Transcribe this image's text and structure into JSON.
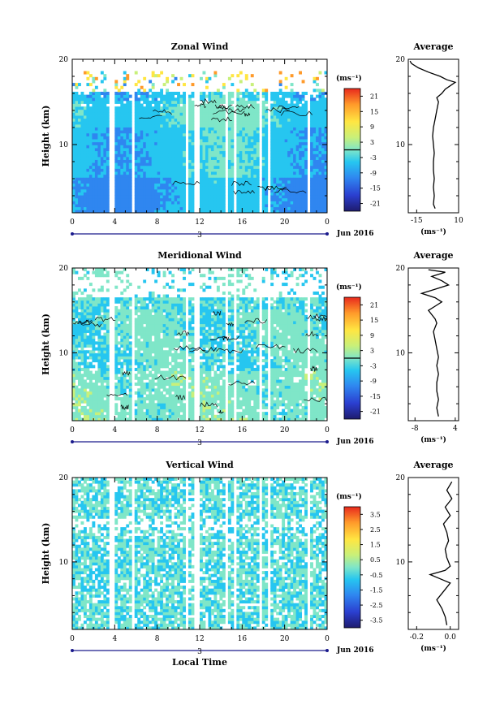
{
  "chart_data": [
    {
      "type": "heatmap",
      "title": "Zonal Wind",
      "ylabel": "Height (km)",
      "y_ticks": [
        "10",
        "20"
      ],
      "ylim": [
        2,
        20
      ],
      "xlim": [
        0,
        24
      ],
      "x_ticks": [
        "0",
        "4",
        "8",
        "12",
        "16",
        "20",
        "0"
      ],
      "date_day": "3",
      "date_label": "Jun 2016",
      "colorbar": {
        "unit": "(ms⁻¹)",
        "labels": [
          "21",
          "15",
          "9",
          "3",
          "-3",
          "-9",
          "-15",
          "-21"
        ],
        "range": [
          -24,
          24
        ]
      },
      "average_profile": {
        "title": "Average",
        "xlabel": "(ms⁻¹)",
        "x_ticks": [
          "-15",
          "10"
        ],
        "xlim": [
          -20,
          10
        ],
        "y_ticks": [
          "10",
          "20"
        ],
        "points": [
          [
            -4,
            2.5
          ],
          [
            -5,
            3
          ],
          [
            -4.5,
            4
          ],
          [
            -5,
            5
          ],
          [
            -4.5,
            6
          ],
          [
            -5,
            7
          ],
          [
            -5,
            8
          ],
          [
            -4.5,
            9
          ],
          [
            -5,
            10
          ],
          [
            -5.5,
            11
          ],
          [
            -5,
            12
          ],
          [
            -4,
            13
          ],
          [
            -3,
            14
          ],
          [
            -2,
            15
          ],
          [
            -3,
            15.5
          ],
          [
            0,
            16
          ],
          [
            2,
            16.5
          ],
          [
            8,
            17.3
          ],
          [
            3,
            17.6
          ],
          [
            -1,
            18
          ],
          [
            -8,
            18.5
          ],
          [
            -14,
            19
          ],
          [
            -18,
            19.5
          ],
          [
            -19,
            19.8
          ]
        ]
      }
    },
    {
      "type": "heatmap",
      "title": "Meridional Wind",
      "ylabel": "Height (km)",
      "y_ticks": [
        "10",
        "20"
      ],
      "ylim": [
        2,
        20
      ],
      "xlim": [
        0,
        24
      ],
      "x_ticks": [
        "0",
        "4",
        "8",
        "12",
        "16",
        "20",
        "0"
      ],
      "date_day": "3",
      "date_label": "Jun 2016",
      "colorbar": {
        "unit": "(ms⁻¹)",
        "labels": [
          "21",
          "15",
          "9",
          "3",
          "-3",
          "-9",
          "-15",
          "-21"
        ],
        "range": [
          -24,
          24
        ]
      },
      "average_profile": {
        "title": "Average",
        "xlabel": "(ms⁻¹)",
        "x_ticks": [
          "-8",
          "4"
        ],
        "xlim": [
          -10,
          5
        ],
        "y_ticks": [
          "10",
          "20"
        ],
        "points": [
          [
            -1,
            2.5
          ],
          [
            -1.5,
            3.5
          ],
          [
            -1,
            4.5
          ],
          [
            -1.5,
            5.5
          ],
          [
            -1.5,
            6.5
          ],
          [
            -1,
            7.5
          ],
          [
            -1.5,
            8.5
          ],
          [
            -1,
            9.5
          ],
          [
            -1.5,
            10.5
          ],
          [
            -2,
            11.5
          ],
          [
            -2.5,
            12.5
          ],
          [
            -1.5,
            13.5
          ],
          [
            -2,
            14
          ],
          [
            -3,
            14.5
          ],
          [
            -4,
            15
          ],
          [
            -2,
            15.5
          ],
          [
            0,
            16
          ],
          [
            -2,
            16.5
          ],
          [
            -6,
            17
          ],
          [
            -2,
            17.5
          ],
          [
            2,
            18
          ],
          [
            0,
            18.5
          ],
          [
            -3,
            19
          ],
          [
            1,
            19.5
          ],
          [
            -4,
            19.8
          ]
        ]
      }
    },
    {
      "type": "heatmap",
      "title": "Vertical Wind",
      "ylabel": "Height (km)",
      "xlabel": "Local Time",
      "y_ticks": [
        "10",
        "20"
      ],
      "ylim": [
        2,
        20
      ],
      "xlim": [
        0,
        24
      ],
      "x_ticks": [
        "0",
        "4",
        "8",
        "12",
        "16",
        "20",
        "0"
      ],
      "date_day": "3",
      "date_label": "Jun 2016",
      "colorbar": {
        "unit": "(ms⁻¹)",
        "labels": [
          "3.5",
          "2.5",
          "1.5",
          "0.5",
          "-0.5",
          "-1.5",
          "-2.5",
          "-3.5"
        ],
        "range": [
          -4,
          4
        ]
      },
      "average_profile": {
        "title": "Average",
        "xlabel": "(ms⁻¹)",
        "x_ticks": [
          "-0.2",
          "0.0"
        ],
        "xlim": [
          -0.25,
          0.05
        ],
        "y_ticks": [
          "10",
          "20"
        ],
        "points": [
          [
            -0.02,
            2.5
          ],
          [
            -0.03,
            3.5
          ],
          [
            -0.05,
            4.5
          ],
          [
            -0.08,
            5.5
          ],
          [
            -0.04,
            6.5
          ],
          [
            0.0,
            7.5
          ],
          [
            -0.06,
            8.0
          ],
          [
            -0.12,
            8.5
          ],
          [
            -0.03,
            9.0
          ],
          [
            0.0,
            9.5
          ],
          [
            -0.02,
            10.5
          ],
          [
            -0.03,
            11.5
          ],
          [
            -0.01,
            12.5
          ],
          [
            -0.02,
            13.5
          ],
          [
            -0.04,
            14.5
          ],
          [
            0.0,
            15.5
          ],
          [
            -0.03,
            16.5
          ],
          [
            0.01,
            17.5
          ],
          [
            -0.02,
            18.5
          ],
          [
            0.01,
            19.5
          ]
        ]
      }
    }
  ]
}
